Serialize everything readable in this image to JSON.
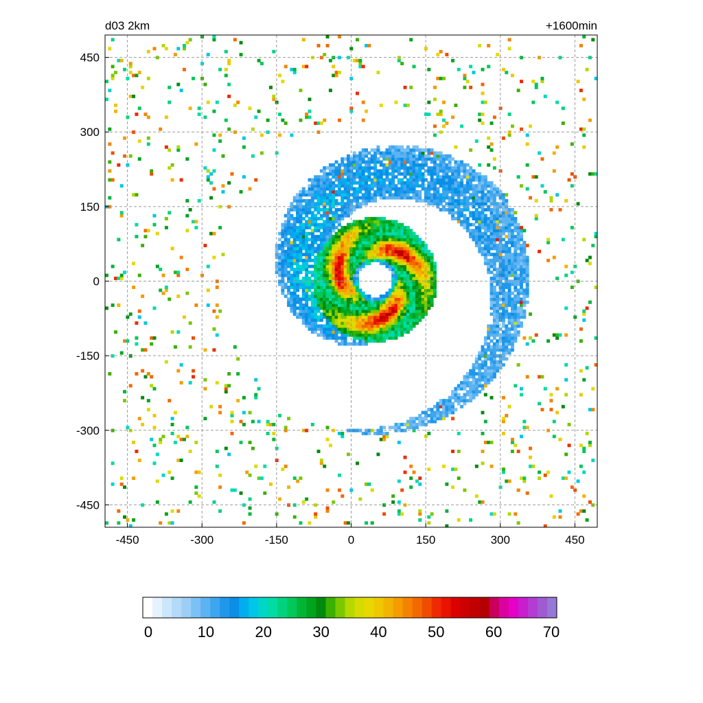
{
  "chart_data": {
    "type": "heatmap",
    "title_left": "d03 2km",
    "title_right": "+1600min",
    "xlabel": "",
    "ylabel": "",
    "xlim": [
      -495,
      495
    ],
    "ylim": [
      -495,
      495
    ],
    "x_ticks": [
      -450,
      -300,
      -150,
      0,
      150,
      300,
      450
    ],
    "y_ticks": [
      450,
      300,
      150,
      0,
      -150,
      -300,
      -450
    ],
    "grid": true,
    "field": {
      "eye_center": [
        45,
        0
      ],
      "eye_radius": 35,
      "core_peak_value": 55,
      "core_radius_max": 125,
      "spiral_band_extent": 310,
      "outer_cells_extent": 495,
      "rotation": "counterclockwise"
    },
    "colorbar": {
      "orientation": "horizontal",
      "placement": "bottom",
      "min": 0,
      "max": 70,
      "ticks": [
        "0",
        "10",
        "20",
        "30",
        "40",
        "50",
        "60",
        "70"
      ],
      "colors": [
        "#ffffff",
        "#e6f2ff",
        "#cce6fb",
        "#b4dafa",
        "#9ccff7",
        "#7cc1f4",
        "#5db3f1",
        "#3ea6ee",
        "#1f98eb",
        "#0a8ee6",
        "#00aef0",
        "#00c6e6",
        "#00d6c8",
        "#00dca4",
        "#00d27e",
        "#00c85a",
        "#00b637",
        "#00a41d",
        "#008a0e",
        "#3ab000",
        "#7ac800",
        "#b4d800",
        "#d6dc00",
        "#e6d800",
        "#eec800",
        "#f2b400",
        "#f49c00",
        "#f48400",
        "#f46800",
        "#f04c00",
        "#ee2a00",
        "#e81400",
        "#dc0000",
        "#cc0000",
        "#c00000",
        "#b40000",
        "#c8005a",
        "#dc00a0",
        "#e600c8",
        "#c81ecd",
        "#b43cd2",
        "#a05ad2",
        "#9678d7"
      ]
    }
  }
}
